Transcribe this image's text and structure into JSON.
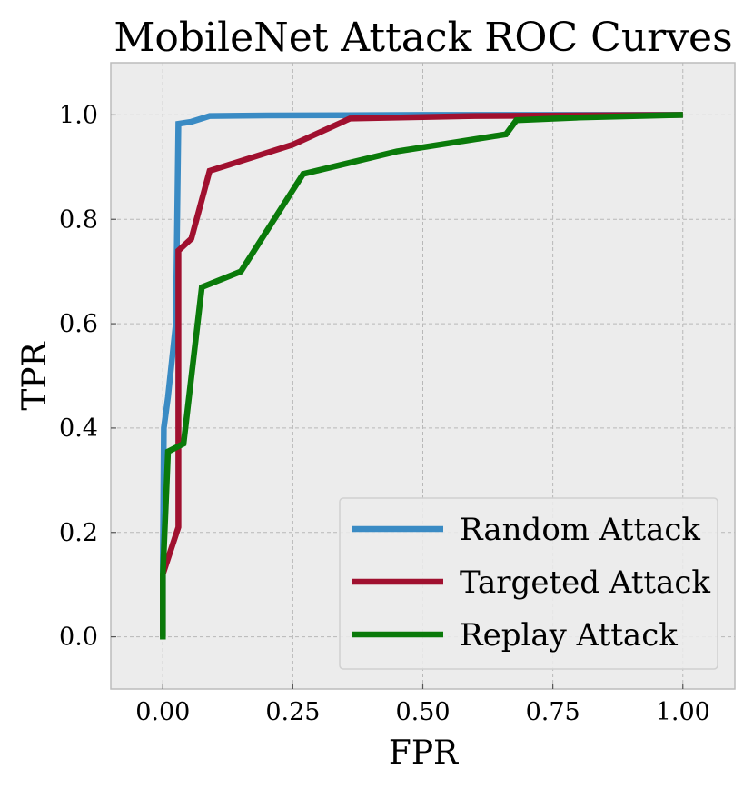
{
  "chart_data": {
    "type": "line",
    "title": "MobileNet Attack ROC Curves",
    "xlabel": "FPR",
    "ylabel": "TPR",
    "xlim": [
      -0.1,
      1.1
    ],
    "ylim": [
      -0.1,
      1.1
    ],
    "xticks": [
      0.0,
      0.25,
      0.5,
      0.75,
      1.0
    ],
    "xtick_labels": [
      "0.00",
      "0.25",
      "0.50",
      "0.75",
      "1.00"
    ],
    "yticks": [
      0.0,
      0.2,
      0.4,
      0.6,
      0.8,
      1.0
    ],
    "ytick_labels": [
      "0.0",
      "0.2",
      "0.4",
      "0.6",
      "0.8",
      "1.0"
    ],
    "grid": true,
    "legend_position": "lower-right",
    "background": "#ececec",
    "series": [
      {
        "name": "Random Attack",
        "color": "#3a8bc4",
        "x": [
          0.0,
          0.0,
          0.002,
          0.01,
          0.025,
          0.03,
          0.055,
          0.09,
          0.2,
          0.5,
          0.8,
          1.0
        ],
        "y": [
          0.0,
          0.15,
          0.4,
          0.46,
          0.6,
          0.983,
          0.987,
          0.998,
          0.999,
          1.0,
          1.0,
          1.0
        ]
      },
      {
        "name": "Targeted Attack",
        "color": "#a0102f",
        "x": [
          0.0,
          0.0,
          0.03,
          0.03,
          0.055,
          0.09,
          0.25,
          0.36,
          0.6,
          1.0
        ],
        "y": [
          0.0,
          0.12,
          0.21,
          0.74,
          0.763,
          0.893,
          0.943,
          0.993,
          0.998,
          1.0
        ],
        "start_visible": 1
      },
      {
        "name": "Replay Attack",
        "color": "#0a7a0a",
        "x": [
          0.0,
          0.0,
          0.01,
          0.04,
          0.075,
          0.15,
          0.27,
          0.45,
          0.66,
          0.68,
          0.8,
          1.0
        ],
        "y": [
          -0.005,
          0.12,
          0.355,
          0.37,
          0.67,
          0.7,
          0.887,
          0.93,
          0.963,
          0.99,
          0.995,
          1.0
        ]
      }
    ]
  }
}
